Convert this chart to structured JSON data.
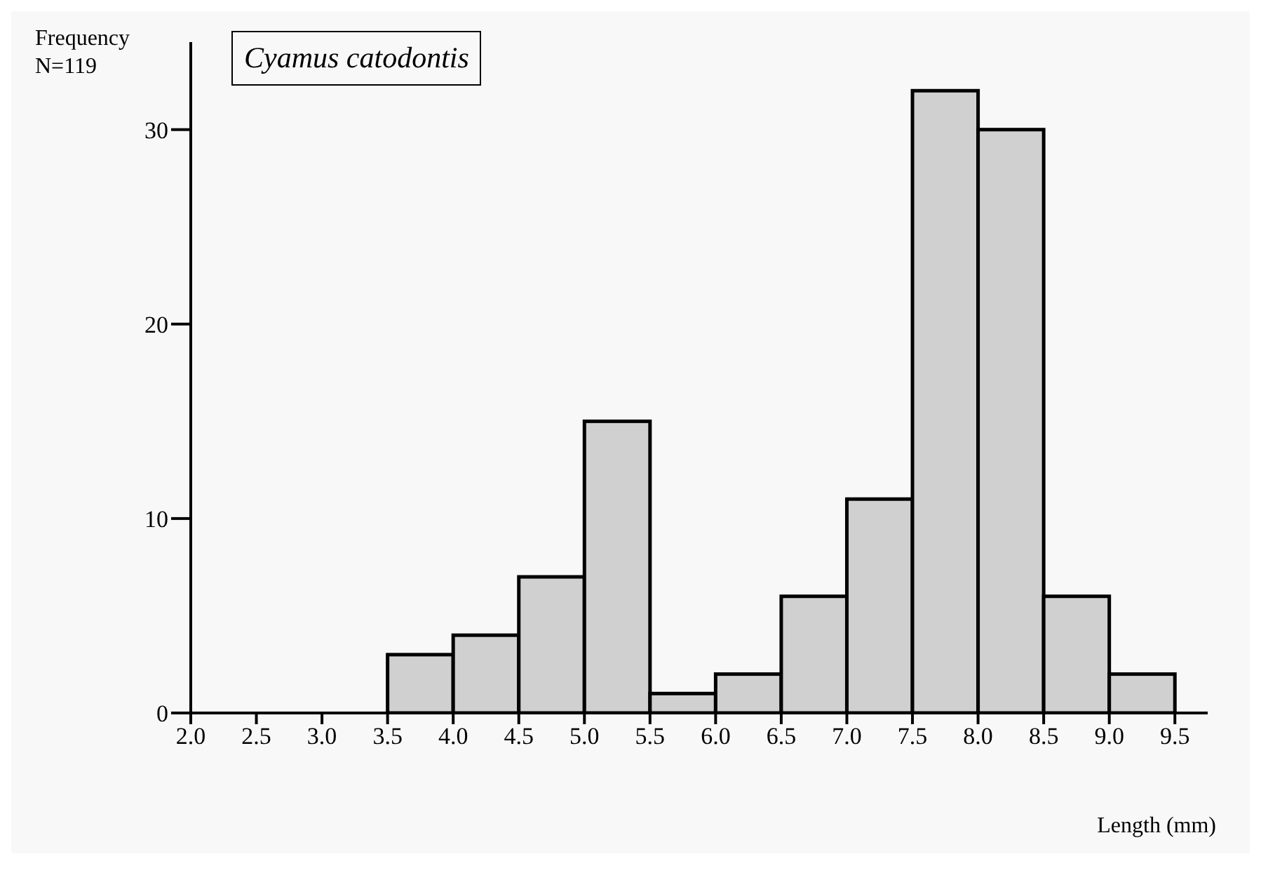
{
  "chart_data": {
    "type": "histogram",
    "title": "Cyamus catodontis",
    "ylabel": "Frequency\nN=119",
    "xlabel": "Length (mm)",
    "bins": [
      2.0,
      2.5,
      3.0,
      3.5,
      4.0,
      4.5,
      5.0,
      5.5,
      6.0,
      6.5,
      7.0,
      7.5,
      8.0,
      8.5,
      9.0,
      9.5
    ],
    "values": [
      0,
      0,
      0,
      3,
      4,
      7,
      15,
      1,
      2,
      6,
      11,
      32,
      30,
      6,
      2
    ],
    "color": "#d0d0d0",
    "xticks": [
      {
        "value": 2.0,
        "label": "2.0"
      },
      {
        "value": 2.5,
        "label": "2.5"
      },
      {
        "value": 3.0,
        "label": "3.0"
      },
      {
        "value": 3.5,
        "label": "3.5"
      },
      {
        "value": 4.0,
        "label": "4.0"
      },
      {
        "value": 4.5,
        "label": "4.5"
      },
      {
        "value": 5.0,
        "label": "5.0"
      },
      {
        "value": 5.5,
        "label": "5.5"
      },
      {
        "value": 6.0,
        "label": "6.0"
      },
      {
        "value": 6.5,
        "label": "6.5"
      },
      {
        "value": 7.0,
        "label": "7.0"
      },
      {
        "value": 7.5,
        "label": "7.5"
      },
      {
        "value": 8.0,
        "label": "8.0"
      },
      {
        "value": 8.5,
        "label": "8.5"
      },
      {
        "value": 9.0,
        "label": "9.0"
      },
      {
        "value": 9.5,
        "label": "9.5"
      }
    ],
    "xlim": [
      2.0,
      9.75
    ],
    "ylim": [
      0,
      34.5
    ],
    "yticks": [
      0,
      10,
      20,
      30
    ]
  }
}
